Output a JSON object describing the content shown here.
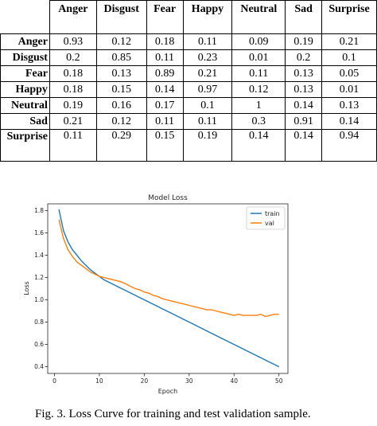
{
  "table": {
    "columns": [
      "Anger",
      "Disgust",
      "Fear",
      "Happy",
      "Neutral",
      "Sad",
      "Surprise"
    ],
    "rows": [
      {
        "label": "Anger",
        "values": [
          "0.93",
          "0.12",
          "0.18",
          "0.11",
          "0.09",
          "0.19",
          "0.21"
        ]
      },
      {
        "label": "Disgust",
        "values": [
          "0.2",
          "0.85",
          "0.11",
          "0.23",
          "0.01",
          "0.2",
          "0.1"
        ]
      },
      {
        "label": "Fear",
        "values": [
          "0.18",
          "0.13",
          "0.89",
          "0.21",
          "0.11",
          "0.13",
          "0.05"
        ]
      },
      {
        "label": "Happy",
        "values": [
          "0.18",
          "0.15",
          "0.14",
          "0.97",
          "0.12",
          "0.13",
          "0.01"
        ]
      },
      {
        "label": "Neutral",
        "values": [
          "0.19",
          "0.16",
          "0.17",
          "0.1",
          "1",
          "0.14",
          "0.13"
        ]
      },
      {
        "label": "Sad",
        "values": [
          "0.21",
          "0.12",
          "0.11",
          "0.11",
          "0.3",
          "0.91",
          "0.14"
        ]
      },
      {
        "label": "Surprise",
        "values": [
          "0.11",
          "0.29",
          "0.15",
          "0.19",
          "0.14",
          "0.14",
          "0.94"
        ]
      }
    ]
  },
  "chart_data": {
    "type": "line",
    "title": "Model Loss",
    "xlabel": "Epoch",
    "ylabel": "Loss",
    "xlim": [
      -1.5,
      52
    ],
    "ylim": [
      0.34,
      1.86
    ],
    "xticks": [
      0,
      10,
      20,
      30,
      40,
      50
    ],
    "yticks": [
      0.4,
      0.6,
      0.8,
      1.0,
      1.2,
      1.4,
      1.6,
      1.8
    ],
    "ytick_labels": [
      "0.4",
      "0.6",
      "0.8",
      "1.0",
      "1.2",
      "1.4",
      "1.6",
      "1.8"
    ],
    "legend_position": "top-right",
    "x": [
      1,
      2,
      3,
      4,
      5,
      6,
      7,
      8,
      9,
      10,
      11,
      12,
      13,
      14,
      15,
      16,
      17,
      18,
      19,
      20,
      21,
      22,
      23,
      24,
      25,
      26,
      27,
      28,
      29,
      30,
      31,
      32,
      33,
      34,
      35,
      36,
      37,
      38,
      39,
      40,
      41,
      42,
      43,
      44,
      45,
      46,
      47,
      48,
      49,
      50
    ],
    "series": [
      {
        "name": "train",
        "color": "#1f77b4",
        "values": [
          1.81,
          1.62,
          1.52,
          1.45,
          1.4,
          1.35,
          1.31,
          1.27,
          1.24,
          1.21,
          1.18,
          1.16,
          1.14,
          1.12,
          1.1,
          1.08,
          1.06,
          1.04,
          1.02,
          1.0,
          0.98,
          0.96,
          0.94,
          0.92,
          0.9,
          0.88,
          0.86,
          0.84,
          0.82,
          0.8,
          0.78,
          0.76,
          0.74,
          0.72,
          0.7,
          0.68,
          0.66,
          0.64,
          0.62,
          0.6,
          0.58,
          0.56,
          0.54,
          0.52,
          0.5,
          0.48,
          0.46,
          0.44,
          0.42,
          0.4
        ]
      },
      {
        "name": "val",
        "color": "#ff7f0e",
        "values": [
          1.72,
          1.55,
          1.45,
          1.39,
          1.34,
          1.31,
          1.28,
          1.25,
          1.23,
          1.21,
          1.2,
          1.19,
          1.18,
          1.17,
          1.16,
          1.14,
          1.12,
          1.1,
          1.09,
          1.07,
          1.06,
          1.04,
          1.03,
          1.01,
          1.0,
          0.99,
          0.98,
          0.97,
          0.96,
          0.95,
          0.94,
          0.93,
          0.92,
          0.91,
          0.91,
          0.9,
          0.89,
          0.88,
          0.87,
          0.86,
          0.87,
          0.86,
          0.86,
          0.86,
          0.86,
          0.87,
          0.85,
          0.86,
          0.87,
          0.87
        ]
      }
    ]
  },
  "caption": "Fig. 3. Loss Curve for training and test validation sample."
}
